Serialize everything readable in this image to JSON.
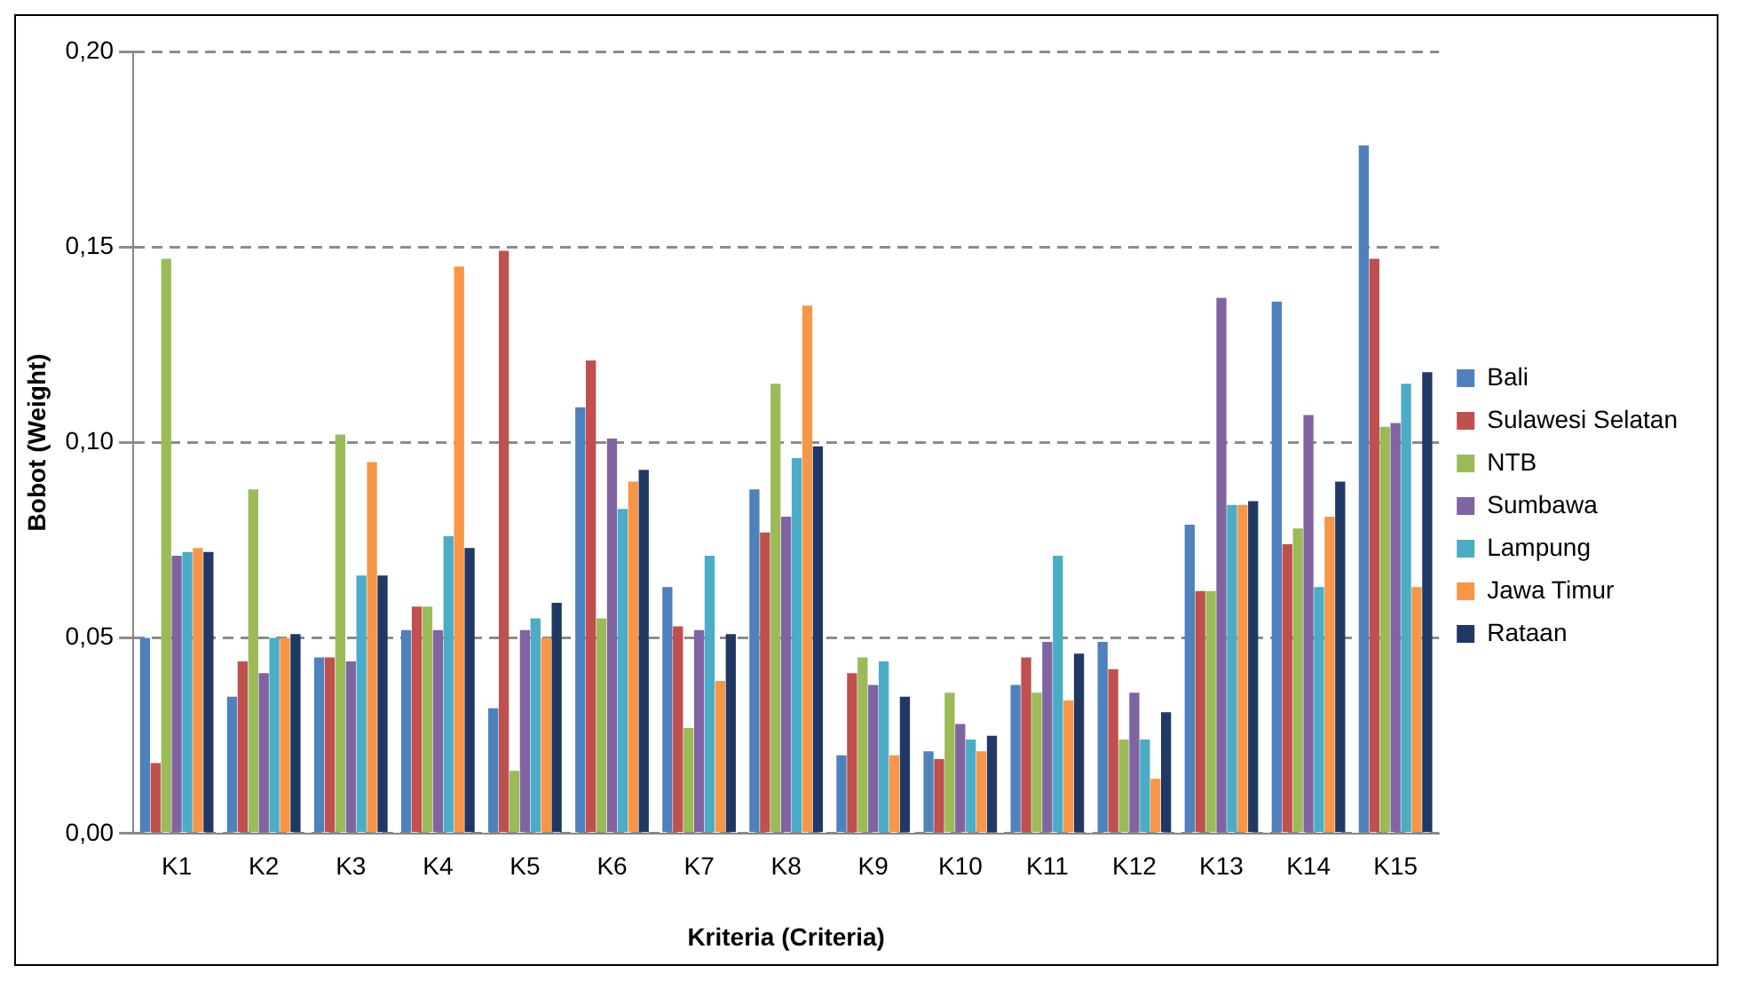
{
  "chart_data": {
    "type": "bar",
    "xlabel": "Kriteria (Criteria)",
    "ylabel": "Bobot (Weight)",
    "categories": [
      "K1",
      "K2",
      "K3",
      "K4",
      "K5",
      "K6",
      "K7",
      "K8",
      "K9",
      "K10",
      "K11",
      "K12",
      "K13",
      "K14",
      "K15"
    ],
    "series": [
      {
        "name": "Bali",
        "color": "#4f81bd",
        "values": [
          0.05,
          0.035,
          0.045,
          0.052,
          0.032,
          0.109,
          0.063,
          0.088,
          0.02,
          0.021,
          0.038,
          0.049,
          0.079,
          0.136,
          0.176
        ]
      },
      {
        "name": "Sulawesi Selatan",
        "color": "#c0504d",
        "values": [
          0.018,
          0.044,
          0.045,
          0.058,
          0.149,
          0.121,
          0.053,
          0.077,
          0.041,
          0.019,
          0.045,
          0.042,
          0.062,
          0.074,
          0.147
        ]
      },
      {
        "name": "NTB",
        "color": "#9bbb59",
        "values": [
          0.147,
          0.088,
          0.102,
          0.058,
          0.016,
          0.055,
          0.027,
          0.115,
          0.045,
          0.036,
          0.036,
          0.024,
          0.062,
          0.078,
          0.104
        ]
      },
      {
        "name": "Sumbawa",
        "color": "#8064a2",
        "values": [
          0.071,
          0.041,
          0.044,
          0.052,
          0.052,
          0.101,
          0.052,
          0.081,
          0.038,
          0.028,
          0.049,
          0.036,
          0.137,
          0.107,
          0.105
        ]
      },
      {
        "name": "Lampung",
        "color": "#4bacc6",
        "values": [
          0.072,
          0.05,
          0.066,
          0.076,
          0.055,
          0.083,
          0.071,
          0.096,
          0.044,
          0.024,
          0.071,
          0.024,
          0.084,
          0.063,
          0.115
        ]
      },
      {
        "name": "Jawa Timur",
        "color": "#f79646",
        "values": [
          0.073,
          0.05,
          0.095,
          0.145,
          0.05,
          0.09,
          0.039,
          0.135,
          0.02,
          0.021,
          0.034,
          0.014,
          0.084,
          0.081,
          0.063
        ]
      },
      {
        "name": "Rataan",
        "color": "#1f3864",
        "values": [
          0.072,
          0.051,
          0.066,
          0.073,
          0.059,
          0.093,
          0.051,
          0.099,
          0.035,
          0.025,
          0.046,
          0.031,
          0.085,
          0.09,
          0.118
        ]
      }
    ],
    "ylim": [
      0,
      0.2
    ],
    "yticks": [
      {
        "value": 0,
        "label": "0,00"
      },
      {
        "value": 0.05,
        "label": "0,05"
      },
      {
        "value": 0.1,
        "label": "0,10"
      },
      {
        "value": 0.15,
        "label": "0,15"
      },
      {
        "value": 0.2,
        "label": "0,20"
      }
    ],
    "grid": "y",
    "line_style": "dashed",
    "legend": "right"
  }
}
